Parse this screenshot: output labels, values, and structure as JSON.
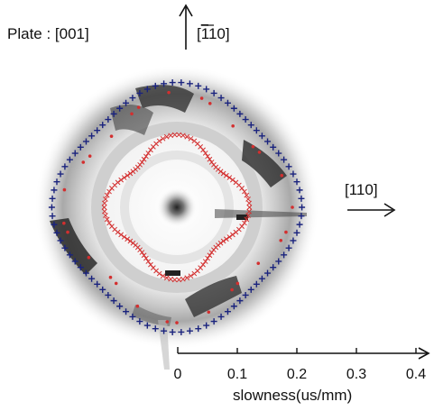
{
  "plate_label": "Plate : [001]",
  "direction_up_label": "[",
  "direction_up_bar": "1",
  "direction_up_rest": "10]",
  "direction_right_label": "[110]",
  "chart_data": {
    "type": "scatter",
    "title": "",
    "xlabel": "slowness(us/mm)",
    "xlim": [
      0,
      0.4
    ],
    "x_ticks": [
      "0",
      "0.1",
      "0.2",
      "0.3",
      "0.4"
    ],
    "series": [
      {
        "marker": "plus",
        "color": "#1a237e",
        "radius_profile": {
          "mean": 0.198,
          "anisotropy": 0.012
        }
      },
      {
        "marker": "x",
        "color": "#d32f2f",
        "radius_profile": {
          "mean": 0.108,
          "anisotropy": 0.014
        }
      },
      {
        "marker": "dot",
        "color": "#d32f2f",
        "radius_profile": {
          "mean": 0.178,
          "anisotropy": 0.016
        }
      }
    ],
    "colors": {
      "axis": "#111111",
      "background_field": "#9e9e9e"
    }
  }
}
